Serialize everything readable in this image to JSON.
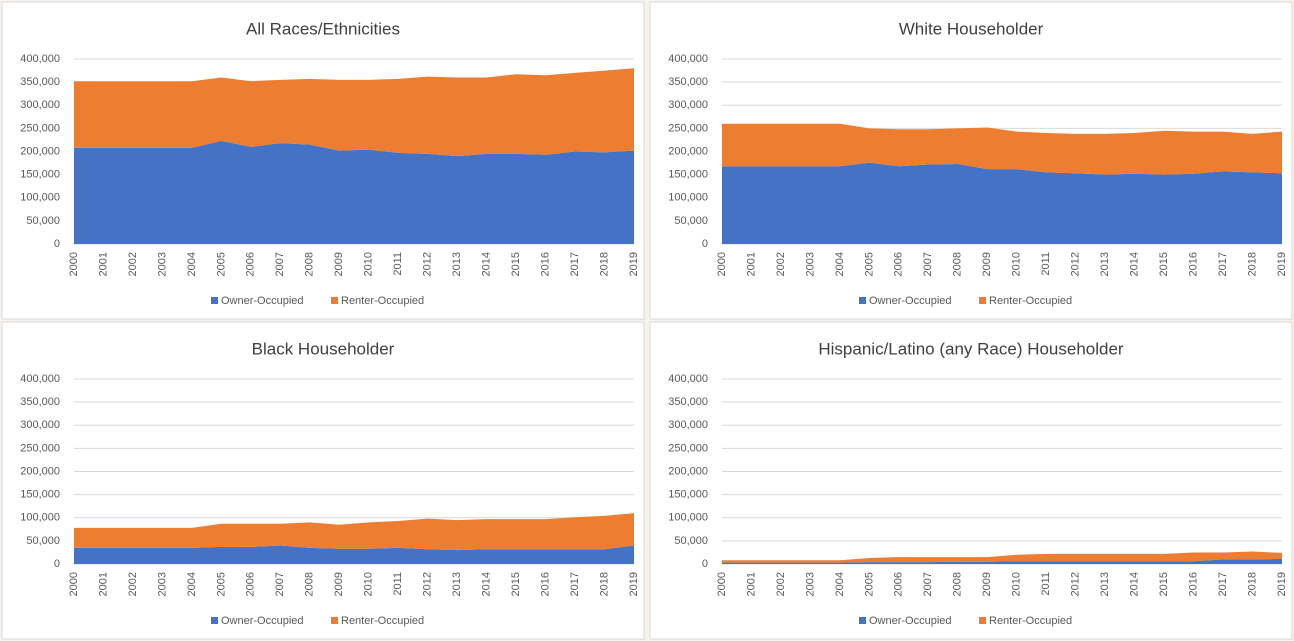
{
  "chart_data": [
    {
      "type": "area",
      "stacked": true,
      "title": "All Races/Ethnicities",
      "categories": [
        "2000",
        "2001",
        "2002",
        "2003",
        "2004",
        "2005",
        "2006",
        "2007",
        "2008",
        "2009",
        "2010",
        "2011",
        "2012",
        "2013",
        "2014",
        "2015",
        "2016",
        "2017",
        "2018",
        "2019"
      ],
      "series": [
        {
          "name": "Owner-Occupied",
          "color": "#4472c4",
          "values": [
            208000,
            208000,
            208000,
            208000,
            208000,
            223000,
            210000,
            218000,
            215000,
            202000,
            204000,
            197000,
            195000,
            190000,
            195000,
            195000,
            193000,
            200000,
            198000,
            202000
          ]
        },
        {
          "name": "Renter-Occupied",
          "color": "#ed7d31",
          "values": [
            144000,
            144000,
            144000,
            144000,
            144000,
            137000,
            142000,
            137000,
            142000,
            153000,
            151000,
            160000,
            167000,
            170000,
            165000,
            172000,
            172000,
            170000,
            177000,
            178000
          ]
        }
      ],
      "ylim": [
        0,
        400000
      ],
      "yticks": [
        0,
        {
          "value": 50000,
          "label": "50,000"
        },
        {
          "value": 100000,
          "label": "100,000"
        },
        {
          "value": 150000,
          "label": "150,000"
        },
        {
          "value": 200000,
          "label": "200,000"
        },
        {
          "value": 250000,
          "label": "250,000"
        },
        {
          "value": 300000,
          "label": "300,000"
        },
        {
          "value": 350000,
          "label": "350,000"
        },
        {
          "value": 400000,
          "label": "400,000"
        }
      ],
      "grid": true,
      "legend": "bottom"
    },
    {
      "type": "area",
      "stacked": true,
      "title": "White Householder",
      "categories": [
        "2000",
        "2001",
        "2002",
        "2003",
        "2004",
        "2005",
        "2006",
        "2007",
        "2008",
        "2009",
        "2010",
        "2011",
        "2012",
        "2013",
        "2014",
        "2015",
        "2016",
        "2017",
        "2018",
        "2019"
      ],
      "series": [
        {
          "name": "Owner-Occupied",
          "color": "#4472c4",
          "values": [
            168000,
            168000,
            168000,
            168000,
            168000,
            176000,
            168000,
            172000,
            173000,
            162000,
            162000,
            155000,
            153000,
            150000,
            152000,
            150000,
            152000,
            157000,
            155000,
            153000
          ]
        },
        {
          "name": "Renter-Occupied",
          "color": "#ed7d31",
          "values": [
            92000,
            92000,
            92000,
            92000,
            92000,
            74000,
            80000,
            76000,
            77000,
            90000,
            81000,
            85000,
            85000,
            88000,
            88000,
            95000,
            91000,
            86000,
            83000,
            90000
          ]
        }
      ],
      "ylim": [
        0,
        400000
      ],
      "yticks": [
        0,
        {
          "value": 50000,
          "label": "50,000"
        },
        {
          "value": 100000,
          "label": "100,000"
        },
        {
          "value": 150000,
          "label": "150,000"
        },
        {
          "value": 200000,
          "label": "200,000"
        },
        {
          "value": 250000,
          "label": "250,000"
        },
        {
          "value": 300000,
          "label": "300,000"
        },
        {
          "value": 350000,
          "label": "350,000"
        },
        {
          "value": 400000,
          "label": "400,000"
        }
      ],
      "grid": true,
      "legend": "bottom"
    },
    {
      "type": "area",
      "stacked": true,
      "title": "Black Householder",
      "categories": [
        "2000",
        "2001",
        "2002",
        "2003",
        "2004",
        "2005",
        "2006",
        "2007",
        "2008",
        "2009",
        "2010",
        "2011",
        "2012",
        "2013",
        "2014",
        "2015",
        "2016",
        "2017",
        "2018",
        "2019"
      ],
      "series": [
        {
          "name": "Owner-Occupied",
          "color": "#4472c4",
          "values": [
            35000,
            35000,
            35000,
            35000,
            35000,
            37000,
            37000,
            40000,
            35000,
            33000,
            33000,
            35000,
            32000,
            30000,
            32000,
            32000,
            32000,
            32000,
            32000,
            40000
          ]
        },
        {
          "name": "Renter-Occupied",
          "color": "#ed7d31",
          "values": [
            43000,
            43000,
            43000,
            43000,
            43000,
            50000,
            50000,
            47000,
            55000,
            52000,
            57000,
            58000,
            66000,
            65000,
            65000,
            65000,
            65000,
            69000,
            72000,
            70000
          ]
        }
      ],
      "ylim": [
        0,
        400000
      ],
      "yticks": [
        0,
        {
          "value": 50000,
          "label": "50,000"
        },
        {
          "value": 100000,
          "label": "100,000"
        },
        {
          "value": 150000,
          "label": "150,000"
        },
        {
          "value": 200000,
          "label": "200,000"
        },
        {
          "value": 250000,
          "label": "250,000"
        },
        {
          "value": 300000,
          "label": "300,000"
        },
        {
          "value": 350000,
          "label": "350,000"
        },
        {
          "value": 400000,
          "label": "400,000"
        }
      ],
      "grid": true,
      "legend": "bottom"
    },
    {
      "type": "area",
      "stacked": true,
      "title": "Hispanic/Latino (any Race) Householder",
      "categories": [
        "2000",
        "2001",
        "2002",
        "2003",
        "2004",
        "2005",
        "2006",
        "2007",
        "2008",
        "2009",
        "2010",
        "2011",
        "2012",
        "2013",
        "2014",
        "2015",
        "2016",
        "2017",
        "2018",
        "2019"
      ],
      "series": [
        {
          "name": "Owner-Occupied",
          "color": "#4472c4",
          "values": [
            3000,
            3000,
            3000,
            3000,
            3000,
            4000,
            4000,
            4000,
            5000,
            5000,
            6000,
            6000,
            6000,
            6000,
            6000,
            6000,
            6000,
            10000,
            10000,
            11000
          ]
        },
        {
          "name": "Renter-Occupied",
          "color": "#ed7d31",
          "values": [
            5000,
            5000,
            5000,
            5000,
            5000,
            9000,
            11000,
            11000,
            10000,
            10000,
            14000,
            16000,
            16000,
            16000,
            16000,
            16000,
            19000,
            15000,
            17000,
            13000
          ]
        }
      ],
      "ylim": [
        0,
        400000
      ],
      "yticks": [
        0,
        {
          "value": 50000,
          "label": "50,000"
        },
        {
          "value": 100000,
          "label": "100,000"
        },
        {
          "value": 150000,
          "label": "150,000"
        },
        {
          "value": 200000,
          "label": "200,000"
        },
        {
          "value": 250000,
          "label": "250,000"
        },
        {
          "value": 300000,
          "label": "300,000"
        },
        {
          "value": 350000,
          "label": "350,000"
        },
        {
          "value": 400000,
          "label": "400,000"
        }
      ],
      "grid": true,
      "legend": "bottom"
    }
  ]
}
